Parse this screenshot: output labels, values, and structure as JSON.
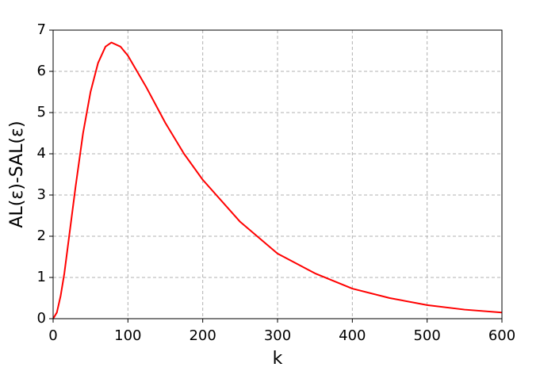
{
  "chart_data": {
    "type": "line",
    "x_label": "k",
    "y_label": "AL(ε)-SAL(ε)",
    "xlim": [
      0,
      600
    ],
    "ylim": [
      0,
      7
    ],
    "xticks": [
      0,
      100,
      200,
      300,
      400,
      500,
      600
    ],
    "yticks": [
      0,
      1,
      2,
      3,
      4,
      5,
      6,
      7
    ],
    "grid": true,
    "series": [
      {
        "color": "#ff0000",
        "x": [
          0,
          5,
          10,
          15,
          20,
          25,
          30,
          40,
          50,
          60,
          70,
          78,
          90,
          100,
          125,
          150,
          175,
          200,
          250,
          300,
          350,
          400,
          450,
          500,
          550,
          600
        ],
        "values": [
          0,
          0.15,
          0.55,
          1.1,
          1.8,
          2.5,
          3.2,
          4.5,
          5.5,
          6.2,
          6.6,
          6.7,
          6.6,
          6.38,
          5.6,
          4.75,
          4.0,
          3.37,
          2.35,
          1.58,
          1.1,
          0.73,
          0.5,
          0.33,
          0.22,
          0.15
        ]
      }
    ]
  }
}
